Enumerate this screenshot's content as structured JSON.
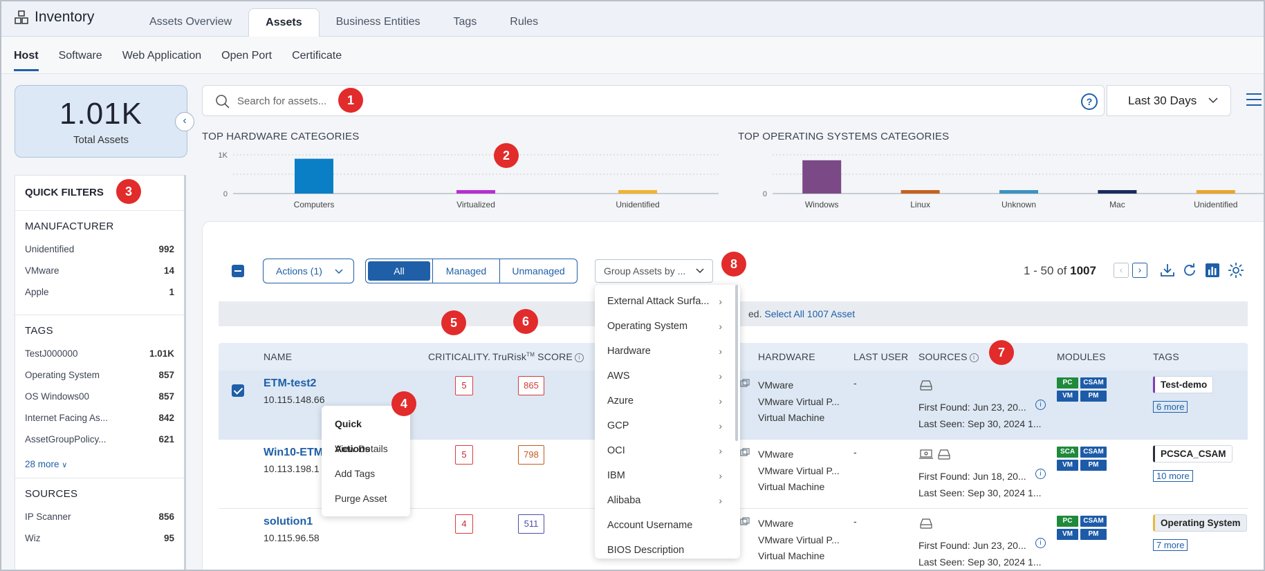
{
  "app": {
    "title": "Inventory"
  },
  "main_tabs": [
    {
      "label": "Assets Overview"
    },
    {
      "label": "Assets",
      "active": true
    },
    {
      "label": "Business Entities"
    },
    {
      "label": "Tags"
    },
    {
      "label": "Rules"
    }
  ],
  "sub_tabs": [
    {
      "label": "Host",
      "active": true
    },
    {
      "label": "Software"
    },
    {
      "label": "Web Application"
    },
    {
      "label": "Open Port"
    },
    {
      "label": "Certificate"
    }
  ],
  "total": {
    "value": "1.01K",
    "label": "Total Assets"
  },
  "quick_filters": {
    "title": "QUICK FILTERS",
    "manufacturer": {
      "title": "MANUFACTURER",
      "items": [
        {
          "label": "Unidentified",
          "count": "992"
        },
        {
          "label": "VMware",
          "count": "14"
        },
        {
          "label": "Apple",
          "count": "1"
        }
      ]
    },
    "tags": {
      "title": "TAGS",
      "items": [
        {
          "label": "TestJ000000",
          "count": "1.01K"
        },
        {
          "label": "Operating System",
          "count": "857"
        },
        {
          "label": "OS Windows00",
          "count": "857"
        },
        {
          "label": "Internet Facing As...",
          "count": "842"
        },
        {
          "label": "AssetGroupPolicy...",
          "count": "621"
        }
      ],
      "more": "28 more"
    },
    "sources": {
      "title": "SOURCES",
      "items": [
        {
          "label": "IP Scanner",
          "count": "856"
        },
        {
          "label": "Wiz",
          "count": "95"
        }
      ]
    }
  },
  "search": {
    "placeholder": "Search for assets...",
    "help": "?"
  },
  "date_range": {
    "value": "Last 30 Days"
  },
  "chart_data": [
    {
      "type": "bar",
      "title": "TOP HARDWARE CATEGORIES",
      "categories": [
        "Computers",
        "Virtualized",
        "Unidentified"
      ],
      "values": [
        900,
        60,
        60
      ],
      "colors": [
        "#0b7fc6",
        "#b52fd1",
        "#f2b230"
      ],
      "yticks": [
        "1K",
        "0"
      ],
      "ylim": [
        0,
        1000
      ]
    },
    {
      "type": "bar",
      "title": "TOP OPERATING SYSTEMS CATEGORIES",
      "categories": [
        "Windows",
        "Linux",
        "Unknown",
        "Mac",
        "Unidentified"
      ],
      "values": [
        860,
        80,
        60,
        50,
        60
      ],
      "colors": [
        "#7b4a86",
        "#c5621f",
        "#3b93c2",
        "#1b2a5e",
        "#e9a62a"
      ],
      "yticks": [
        "0"
      ],
      "ylim": [
        0,
        1000
      ]
    }
  ],
  "toolbar": {
    "actions": "Actions (1)",
    "filter_all": "All",
    "filter_managed": "Managed",
    "filter_unmanaged": "Unmanaged",
    "group_by": "Group Assets by ...",
    "range": "1 - 50 of",
    "total": "1007"
  },
  "notice": {
    "text": "ed.",
    "link": "Select All 1007 Asset"
  },
  "columns": {
    "name": "NAME",
    "criticality": "CRITICALITY.",
    "trurisk": "TruRisk",
    "trurisk_tm": "TM",
    "trurisk_suffix": " SCORE",
    "hardware": "HARDWARE",
    "last_user": "LAST USER",
    "sources": "SOURCES",
    "modules": "MODULES",
    "tags": "TAGS"
  },
  "rows": [
    {
      "name": "ETM-test2",
      "ip": "10.115.148.66",
      "criticality": "5",
      "score": "865",
      "score_color": "#d23b3b",
      "hw1": "VMware",
      "hw2": "VMware Virtual P...",
      "hw3": "Virtual Machine",
      "last_user": "-",
      "first_found": "First Found: Jun 23, 20...",
      "last_seen": "Last Seen: Sep 30, 2024 1...",
      "mod1": "PC",
      "mod2": "CSAM",
      "mod3": "VM",
      "mod4": "PM",
      "tag": "Test-demo",
      "tag_color": "#7d3fb5",
      "more": "6 more",
      "selected": true
    },
    {
      "name": "Win10-ETM",
      "ip": "10.113.198.1",
      "criticality": "5",
      "score": "798",
      "score_color": "#c25a1e",
      "hw1": "VMware",
      "hw2": "VMware Virtual P...",
      "hw3": "Virtual Machine",
      "last_user": "-",
      "first_found": "First Found: Jun 18, 20...",
      "last_seen": "Last Seen: Sep 30, 2024 1...",
      "mod1": "SCA",
      "mod2": "CSAM",
      "mod3": "VM",
      "mod4": "PM",
      "tag": "PCSCA_CSAM",
      "tag_color": "#2c2f3a",
      "more": "10 more"
    },
    {
      "name": "solution1",
      "ip": "10.115.96.58",
      "criticality": "4",
      "score": "511",
      "score_color": "#4a4fa8",
      "hw1": "VMware",
      "hw2": "VMware Virtual P...",
      "hw3": "Virtual Machine",
      "last_user": "-",
      "first_found": "First Found: Jun 23, 20...",
      "last_seen": "Last Seen: Sep 30, 2024 1...",
      "mod1": "PC",
      "mod2": "CSAM",
      "mod3": "VM",
      "mod4": "PM",
      "tag": "Operating System",
      "tag_color": "#e9b93a",
      "more": "7 more"
    }
  ],
  "quick_actions": {
    "title": "Quick Actions",
    "items": [
      "View Details",
      "Add Tags",
      "Purge Asset"
    ]
  },
  "group_dropdown": {
    "items": [
      {
        "label": "External Attack Surfa...",
        "sub": true
      },
      {
        "label": "Operating System",
        "sub": true
      },
      {
        "label": "Hardware",
        "sub": true
      },
      {
        "label": "AWS",
        "sub": true
      },
      {
        "label": "Azure",
        "sub": true
      },
      {
        "label": "GCP",
        "sub": true
      },
      {
        "label": "OCI",
        "sub": true
      },
      {
        "label": "IBM",
        "sub": true
      },
      {
        "label": "Alibaba",
        "sub": true
      },
      {
        "label": "Account Username",
        "sub": false
      },
      {
        "label": "BIOS Description",
        "sub": false
      }
    ]
  },
  "markers": [
    "1",
    "2",
    "3",
    "4",
    "5",
    "6",
    "7",
    "8"
  ],
  "colors": {
    "accent": "#1e5fa8",
    "marker": "#e22b2b"
  }
}
